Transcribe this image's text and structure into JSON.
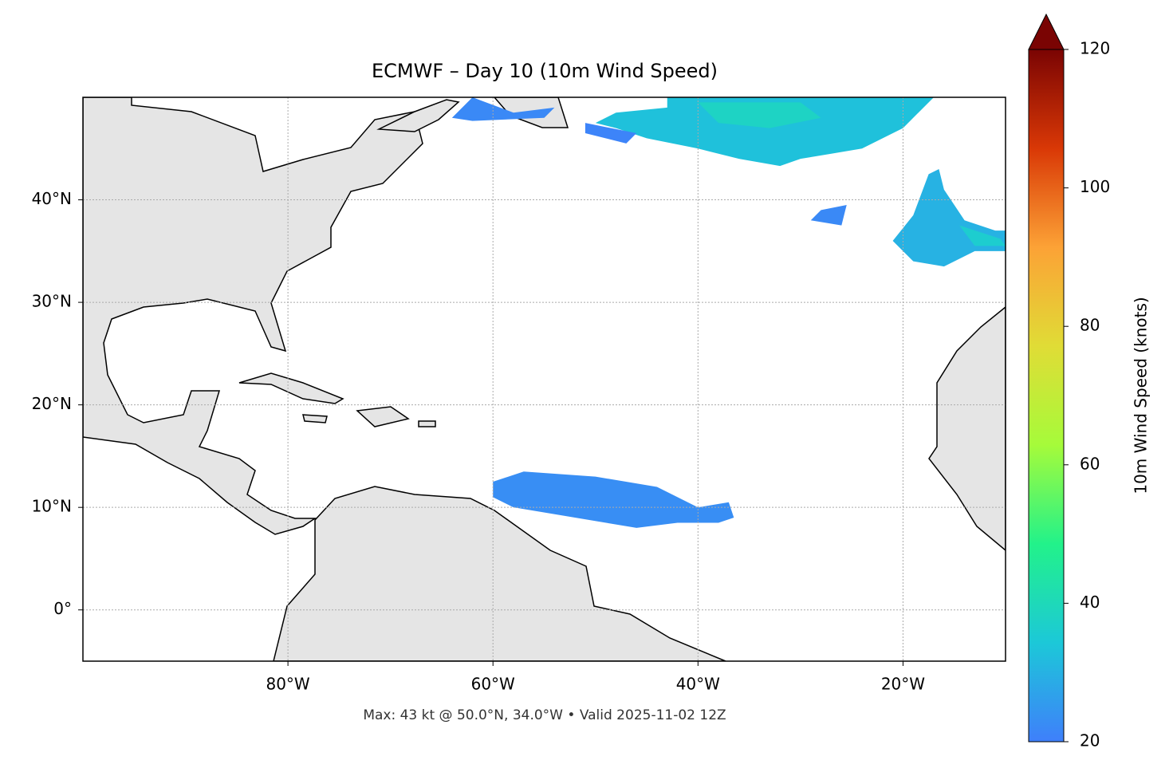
{
  "chart_data": {
    "type": "map",
    "title": "ECMWF – Day 10 (10m Wind Speed)",
    "subtitle": "Max: 43 kt @ 50.0°N, 34.0°W • Valid 2025-11-02 12Z",
    "xlim": [
      -100,
      -10
    ],
    "ylim": [
      -5,
      50
    ],
    "xticks": [
      {
        "value": -80,
        "label": "80°W"
      },
      {
        "value": -60,
        "label": "60°W"
      },
      {
        "value": -40,
        "label": "40°W"
      },
      {
        "value": -20,
        "label": "20°W"
      }
    ],
    "yticks": [
      {
        "value": 0,
        "label": "0°"
      },
      {
        "value": 10,
        "label": "10°N"
      },
      {
        "value": 20,
        "label": "20°N"
      },
      {
        "value": 30,
        "label": "30°N"
      },
      {
        "value": 40,
        "label": "40°N"
      }
    ],
    "grid": true,
    "colormap": [
      "#3f7ffb",
      "#1cc8d8",
      "#22f28a",
      "#a6fb3a",
      "#e0dc36",
      "#fca236",
      "#d93806",
      "#7a0403"
    ],
    "colorbar": {
      "label": "10m Wind Speed (knots)",
      "lim": [
        20,
        120
      ],
      "ticks": [
        20,
        40,
        60,
        80,
        100,
        120
      ],
      "extend": "max"
    },
    "swaths": [
      {
        "value": 33,
        "lon": [
          -43,
          -17,
          -20,
          -24,
          -27,
          -30,
          -32,
          -36,
          -40,
          -45,
          -48,
          -50,
          -48,
          -43
        ],
        "lat": [
          50,
          50,
          47,
          45,
          44.5,
          44,
          43.3,
          44,
          45,
          46,
          47,
          47.5,
          48.5,
          49
        ]
      },
      {
        "value": 38,
        "lon": [
          -40,
          -30,
          -28,
          -33,
          -38
        ],
        "lat": [
          49.5,
          49.5,
          48,
          47,
          47.5
        ]
      },
      {
        "value": 30,
        "lon": [
          -17.5,
          -16.5,
          -16,
          -14,
          -11,
          -10,
          -10,
          -13,
          -16,
          -19,
          -21,
          -19
        ],
        "lat": [
          42.5,
          43,
          41,
          38,
          37,
          37,
          35,
          35,
          33.5,
          34,
          36,
          38.5
        ]
      },
      {
        "value": 36,
        "lon": [
          -14.5,
          -10.5,
          -10,
          -13
        ],
        "lat": [
          37.5,
          36.2,
          35.5,
          35.5
        ]
      },
      {
        "value": 23,
        "lon": [
          -57,
          -50,
          -44,
          -40,
          -37,
          -36.5,
          -38,
          -42,
          -46,
          -52,
          -58,
          -60,
          -60
        ],
        "lat": [
          13.5,
          13,
          12,
          10,
          10.5,
          9,
          8.5,
          8.5,
          8,
          9,
          10,
          11,
          12.5
        ]
      },
      {
        "value": 22,
        "lon": [
          -62,
          -58,
          -54,
          -55,
          -62,
          -64
        ],
        "lat": [
          50,
          48.5,
          49,
          48,
          47.7,
          48
        ]
      },
      {
        "value": 21,
        "lon": [
          -51,
          -46,
          -47,
          -51
        ],
        "lat": [
          47.5,
          46.5,
          45.5,
          46.5
        ]
      },
      {
        "value": 22,
        "lon": [
          -29,
          -26,
          -25.5,
          -28
        ],
        "lat": [
          38,
          37.5,
          39.5,
          39
        ]
      }
    ]
  }
}
